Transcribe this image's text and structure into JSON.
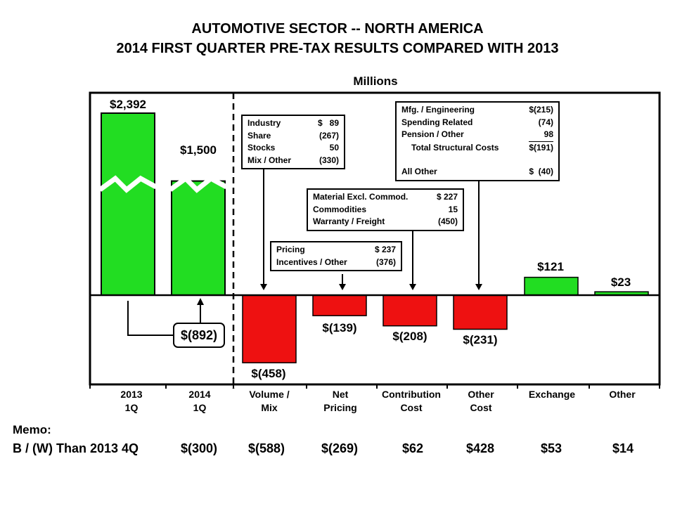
{
  "title_line1": "AUTOMOTIVE SECTOR -- NORTH AMERICA",
  "title_line2": "2014 FIRST QUARTER PRE-TAX RESULTS COMPARED WITH 2013",
  "units": "Millions",
  "colors": {
    "positive": "#22dd22",
    "negative": "#ee1111",
    "frame": "#000000"
  },
  "chart_data": {
    "type": "bar",
    "subtype": "waterfall-variance",
    "categories": [
      "2013\n1Q",
      "2014\n1Q",
      "Volume /\nMix",
      "Net\nPricing",
      "Contribution\nCost",
      "Other\nCost",
      "Exchange",
      "Other"
    ],
    "values": [
      2392,
      1500,
      -458,
      -139,
      -208,
      -231,
      121,
      23
    ],
    "value_labels": [
      "$2,392",
      "$1,500",
      "$(458)",
      "$(139)",
      "$(208)",
      "$(231)",
      "$121",
      "$23"
    ],
    "axis_break_on": [
      "2013 1Q",
      "2014 1Q"
    ],
    "change_label": "$(892)",
    "grid": false
  },
  "detail_boxes": {
    "volume_mix": [
      {
        "label": "Industry",
        "value": "$   89"
      },
      {
        "label": "Share",
        "value": "(267)"
      },
      {
        "label": "Stocks",
        "value": "50"
      },
      {
        "label": "Mix / Other",
        "value": "(330)"
      }
    ],
    "net_pricing": [
      {
        "label": "Pricing",
        "value": "$ 237"
      },
      {
        "label": "Incentives / Other",
        "value": "(376)"
      }
    ],
    "contribution_cost": [
      {
        "label": "Material Excl. Commod.",
        "value": "$ 227"
      },
      {
        "label": "Commodities",
        "value": "15"
      },
      {
        "label": "Warranty / Freight",
        "value": "(450)"
      }
    ],
    "other_cost": {
      "rows": [
        {
          "label": "Mfg. / Engineering",
          "value": "$(215)"
        },
        {
          "label": "Spending Related",
          "value": "(74)"
        },
        {
          "label": "Pension / Other",
          "value": "98"
        }
      ],
      "total": {
        "label": "Total Structural Costs",
        "value": "$(191)"
      },
      "all_other": {
        "label": "All Other",
        "value": "$  (40)"
      }
    }
  },
  "memo": {
    "title": "Memo:",
    "label": "B / (W) Than 2013 4Q",
    "values": [
      "$(300)",
      "$(588)",
      "$(269)",
      "$62",
      "$428",
      "$53",
      "$14"
    ]
  }
}
